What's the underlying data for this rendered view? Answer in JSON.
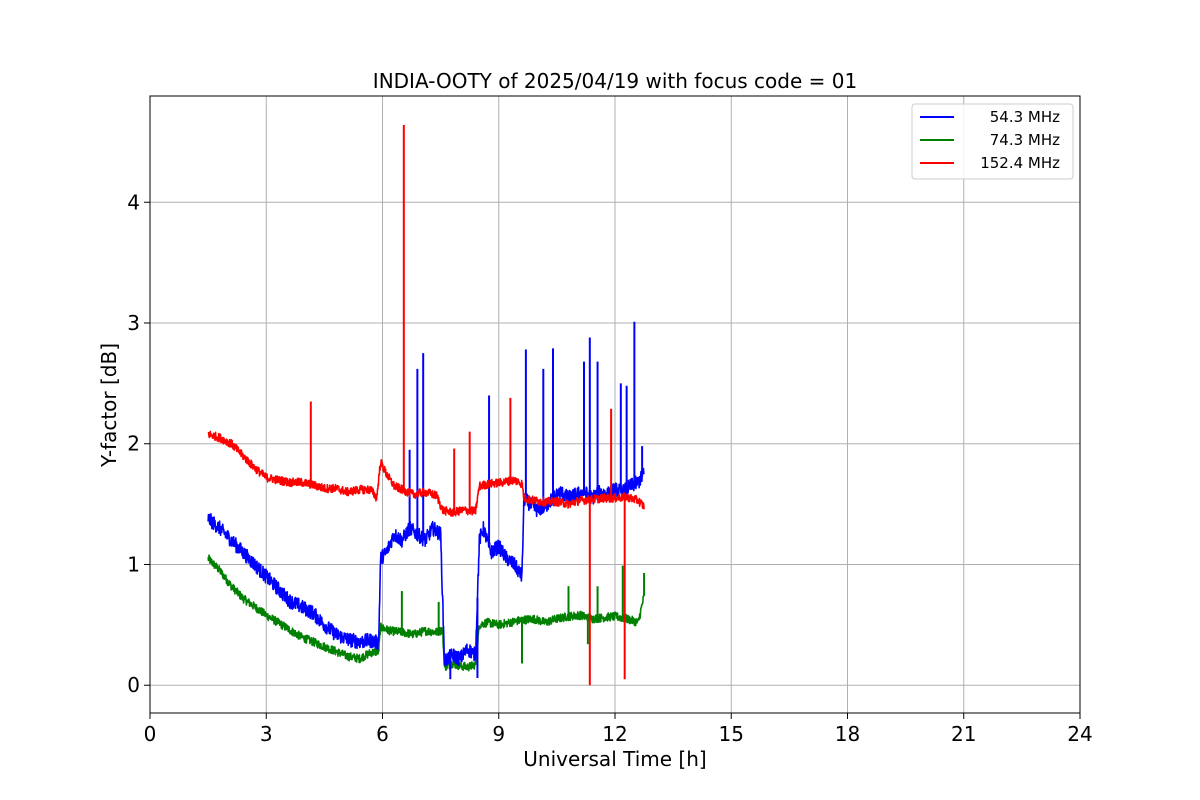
{
  "chart_data": {
    "type": "line",
    "title": "INDIA-OOTY of 2025/04/19 with focus code = 01",
    "xlabel": "Universal Time [h]",
    "ylabel": "Y-factor [dB]",
    "xlim": [
      0,
      24
    ],
    "ylim": [
      -0.23,
      4.88
    ],
    "xticks": [
      0,
      3,
      6,
      9,
      12,
      15,
      18,
      21,
      24
    ],
    "xtick_labels": [
      "0",
      "3",
      "6",
      "9",
      "12",
      "15",
      "18",
      "21",
      "24"
    ],
    "yticks": [
      0,
      1,
      2,
      3,
      4
    ],
    "ytick_labels": [
      "0",
      "1",
      "2",
      "3",
      "4"
    ],
    "grid": true,
    "legend_position": "top-right",
    "series": [
      {
        "name": "54.3 MHz",
        "color": "#0000ff",
        "x": [
          1.5,
          1.8,
          2.1,
          2.4,
          2.7,
          3.0,
          3.3,
          3.6,
          3.9,
          4.2,
          4.5,
          4.8,
          5.1,
          5.4,
          5.7,
          5.9,
          5.95,
          6.1,
          6.3,
          6.5,
          6.7,
          6.9,
          7.1,
          7.3,
          7.5,
          7.6,
          7.8,
          8.0,
          8.2,
          8.4,
          8.5,
          8.6,
          8.8,
          9.0,
          9.2,
          9.4,
          9.6,
          9.65,
          9.8,
          10.0,
          10.2,
          10.4,
          10.6,
          10.8,
          11.0,
          11.2,
          11.4,
          11.6,
          11.8,
          12.0,
          12.2,
          12.4,
          12.6,
          12.75
        ],
        "y": [
          1.38,
          1.3,
          1.2,
          1.1,
          1.0,
          0.9,
          0.8,
          0.7,
          0.65,
          0.6,
          0.5,
          0.42,
          0.38,
          0.36,
          0.37,
          0.35,
          1.05,
          1.1,
          1.25,
          1.2,
          1.3,
          1.25,
          1.2,
          1.3,
          1.25,
          0.2,
          0.25,
          0.22,
          0.3,
          0.25,
          1.2,
          1.3,
          1.1,
          1.15,
          1.05,
          1.0,
          0.9,
          1.55,
          1.5,
          1.45,
          1.48,
          1.55,
          1.6,
          1.55,
          1.58,
          1.6,
          1.55,
          1.6,
          1.58,
          1.62,
          1.6,
          1.65,
          1.68,
          1.75
        ],
        "spikes": [
          [
            6.7,
            1.95
          ],
          [
            6.9,
            2.62
          ],
          [
            7.05,
            2.75
          ],
          [
            8.75,
            2.4
          ],
          [
            9.7,
            2.78
          ],
          [
            10.15,
            2.62
          ],
          [
            10.4,
            2.79
          ],
          [
            11.2,
            2.68
          ],
          [
            11.35,
            2.88
          ],
          [
            11.55,
            2.68
          ],
          [
            12.15,
            2.5
          ],
          [
            12.3,
            2.48
          ],
          [
            12.5,
            3.01
          ],
          [
            12.7,
            1.98
          ]
        ],
        "dips": [
          [
            7.75,
            0.05
          ],
          [
            8.45,
            0.06
          ]
        ]
      },
      {
        "name": "74.3 MHz",
        "color": "#008000",
        "x": [
          1.5,
          1.8,
          2.1,
          2.4,
          2.7,
          3.0,
          3.3,
          3.6,
          3.9,
          4.2,
          4.5,
          4.8,
          5.1,
          5.4,
          5.7,
          5.9,
          5.95,
          6.2,
          6.5,
          6.8,
          7.1,
          7.4,
          7.55,
          7.6,
          7.8,
          8.0,
          8.2,
          8.4,
          8.5,
          8.7,
          9.0,
          9.3,
          9.6,
          9.9,
          10.2,
          10.5,
          10.8,
          11.1,
          11.4,
          11.7,
          12.0,
          12.3,
          12.6,
          12.75
        ],
        "y": [
          1.05,
          0.95,
          0.82,
          0.72,
          0.65,
          0.58,
          0.52,
          0.46,
          0.4,
          0.36,
          0.32,
          0.28,
          0.24,
          0.22,
          0.27,
          0.28,
          0.48,
          0.45,
          0.44,
          0.42,
          0.45,
          0.44,
          0.46,
          0.15,
          0.18,
          0.16,
          0.15,
          0.17,
          0.5,
          0.52,
          0.5,
          0.52,
          0.54,
          0.55,
          0.52,
          0.55,
          0.57,
          0.58,
          0.55,
          0.56,
          0.57,
          0.55,
          0.52,
          0.74
        ],
        "spikes": [
          [
            6.5,
            0.78
          ],
          [
            7.45,
            0.69
          ],
          [
            10.8,
            0.82
          ],
          [
            11.55,
            0.82
          ],
          [
            12.2,
            0.99
          ],
          [
            12.75,
            0.93
          ]
        ],
        "dips": [
          [
            9.6,
            0.18
          ],
          [
            11.3,
            0.34
          ]
        ]
      },
      {
        "name": "152.4 MHz",
        "color": "#ff0000",
        "x": [
          1.5,
          1.8,
          2.1,
          2.4,
          2.7,
          3.0,
          3.3,
          3.6,
          3.9,
          4.2,
          4.5,
          4.8,
          5.1,
          5.4,
          5.7,
          5.85,
          5.95,
          6.1,
          6.3,
          6.5,
          6.8,
          7.1,
          7.4,
          7.55,
          7.8,
          8.1,
          8.4,
          8.5,
          8.8,
          9.1,
          9.4,
          9.6,
          9.65,
          9.9,
          10.2,
          10.5,
          10.8,
          11.1,
          11.4,
          11.7,
          12.0,
          12.3,
          12.6,
          12.75
        ],
        "y": [
          2.08,
          2.05,
          2.0,
          1.9,
          1.8,
          1.72,
          1.7,
          1.68,
          1.68,
          1.66,
          1.63,
          1.63,
          1.6,
          1.62,
          1.62,
          1.55,
          1.85,
          1.75,
          1.65,
          1.62,
          1.58,
          1.6,
          1.57,
          1.45,
          1.43,
          1.45,
          1.44,
          1.65,
          1.67,
          1.68,
          1.7,
          1.67,
          1.55,
          1.53,
          1.52,
          1.52,
          1.5,
          1.53,
          1.54,
          1.55,
          1.55,
          1.56,
          1.53,
          1.48
        ],
        "spikes": [
          [
            4.15,
            2.35
          ],
          [
            6.55,
            4.64
          ],
          [
            7.85,
            1.96
          ],
          [
            8.25,
            2.1
          ],
          [
            9.3,
            2.38
          ],
          [
            11.9,
            2.29
          ]
        ],
        "dips": [
          [
            11.35,
            0.0
          ],
          [
            12.25,
            0.05
          ]
        ]
      }
    ]
  }
}
